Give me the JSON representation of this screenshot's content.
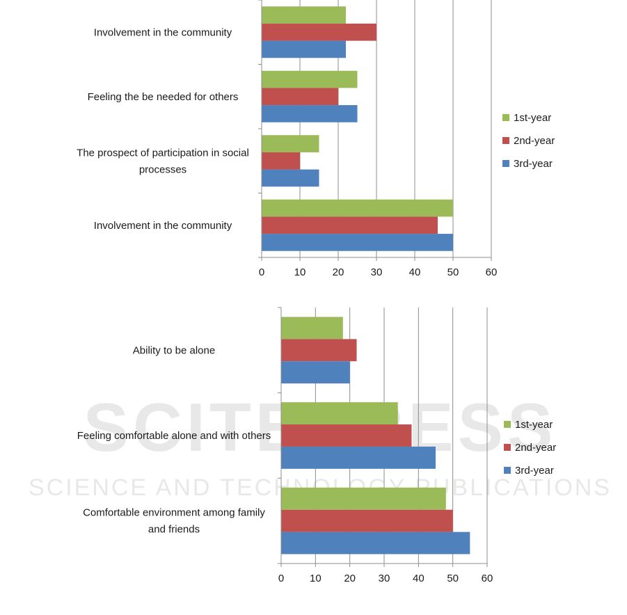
{
  "watermark": {
    "main": "SCITEPRESS",
    "sub": "SCIENCE AND TECHNOLOGY PUBLICATIONS"
  },
  "colors": {
    "1st-year": "#9bbb59",
    "2nd-year": "#c0504d",
    "3rd-year": "#4f81bd",
    "grid": "#8c8c8c",
    "axis": "#8c8c8c"
  },
  "chart_data": [
    {
      "type": "bar",
      "orientation": "horizontal",
      "categories": [
        "Involvement in the community",
        "Feeling the be needed for others",
        "The prospect of participation in social processes",
        "Involvement in the community"
      ],
      "category_lines": [
        [
          "Involvement in the community"
        ],
        [
          "Feeling the be needed for others"
        ],
        [
          "The prospect of participation in social",
          "processes"
        ],
        [
          "Involvement in the community"
        ]
      ],
      "series": [
        {
          "name": "1st-year",
          "values": [
            22,
            25,
            15,
            50
          ]
        },
        {
          "name": "2nd-year",
          "values": [
            30,
            20,
            10,
            46
          ]
        },
        {
          "name": "3rd-year",
          "values": [
            22,
            25,
            15,
            50
          ]
        }
      ],
      "xlim": [
        0,
        60
      ],
      "xticks": [
        "0",
        "10",
        "20",
        "30",
        "40",
        "50",
        "60"
      ],
      "grid": true,
      "legend_position": "right"
    },
    {
      "type": "bar",
      "orientation": "horizontal",
      "categories": [
        "Ability to be alone",
        "Feeling comfortable alone and with others",
        "Comfortable environment among family and friends"
      ],
      "category_lines": [
        [
          "Ability to be alone"
        ],
        [
          "Feeling comfortable alone and with others"
        ],
        [
          "Comfortable environment among family",
          "and friends"
        ]
      ],
      "series": [
        {
          "name": "1st-year",
          "values": [
            18,
            34,
            48
          ]
        },
        {
          "name": "2nd-year",
          "values": [
            22,
            38,
            50
          ]
        },
        {
          "name": "3rd-year",
          "values": [
            20,
            45,
            55
          ]
        }
      ],
      "xlim": [
        0,
        60
      ],
      "xticks": [
        "0",
        "10",
        "20",
        "30",
        "40",
        "50",
        "60"
      ],
      "grid": true,
      "legend_position": "right"
    }
  ]
}
